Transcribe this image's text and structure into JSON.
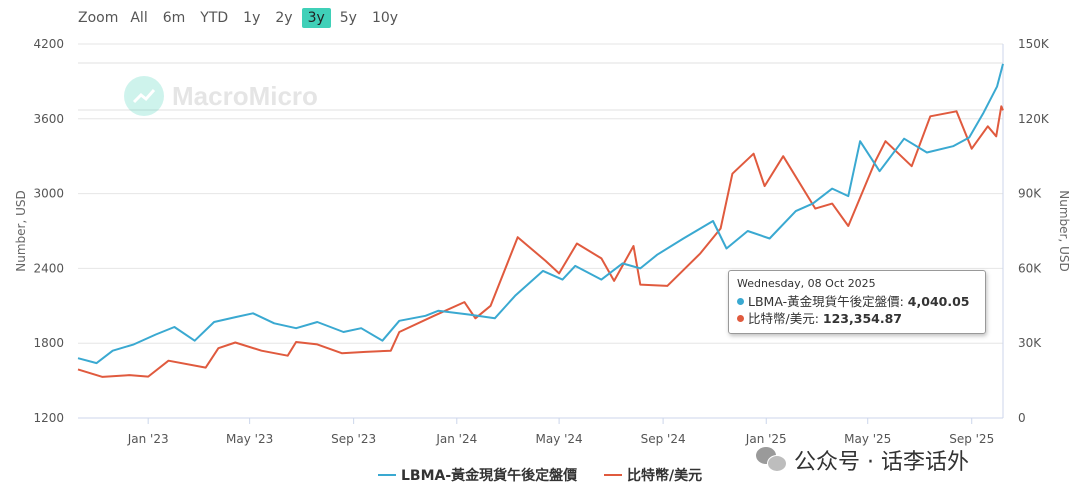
{
  "zoom": {
    "label": "Zoom",
    "buttons": [
      "All",
      "6m",
      "YTD",
      "1y",
      "2y",
      "3y",
      "5y",
      "10y"
    ],
    "active": "3y"
  },
  "watermark": "MacroMicro",
  "tooltip": {
    "date": "Wednesday, 08 Oct 2025",
    "series1_label": "LBMA-黃金現貨午後定盤價: ",
    "series1_value": "4,040.05",
    "series2_label": "比特幣/美元: ",
    "series2_value": "123,354.87"
  },
  "social": "公众号 · 话李话外",
  "chart_data": {
    "type": "line",
    "x_ticks": [
      "Jan '23",
      "May '23",
      "Sep '23",
      "Jan '24",
      "May '24",
      "Sep '24",
      "Jan '25",
      "May '25",
      "Sep '25"
    ],
    "x_range": [
      "2022-10-10",
      "2025-10-08"
    ],
    "y_left": {
      "title": "Number, USD",
      "ticks": [
        "1200",
        "1800",
        "2400",
        "3000",
        "3600",
        "4200"
      ],
      "min": 1200,
      "max": 4200
    },
    "y_right": {
      "title": "Number, USD",
      "ticks": [
        "0",
        "30K",
        "60K",
        "90K",
        "120K",
        "150K"
      ],
      "min": 0,
      "max": 150000
    },
    "legend_position": "bottom-center",
    "series": [
      {
        "name": "LBMA-黃金現貨午後定盤價",
        "axis": "left",
        "color": "#3aa9d1",
        "points": [
          [
            "2022-10-10",
            1680
          ],
          [
            "2022-11-01",
            1640
          ],
          [
            "2022-11-20",
            1740
          ],
          [
            "2022-12-15",
            1790
          ],
          [
            "2023-01-10",
            1870
          ],
          [
            "2023-02-01",
            1930
          ],
          [
            "2023-02-25",
            1820
          ],
          [
            "2023-03-20",
            1970
          ],
          [
            "2023-04-15",
            2010
          ],
          [
            "2023-05-05",
            2040
          ],
          [
            "2023-05-30",
            1960
          ],
          [
            "2023-06-25",
            1920
          ],
          [
            "2023-07-20",
            1970
          ],
          [
            "2023-08-20",
            1890
          ],
          [
            "2023-09-10",
            1920
          ],
          [
            "2023-10-05",
            1820
          ],
          [
            "2023-10-25",
            1980
          ],
          [
            "2023-11-25",
            2020
          ],
          [
            "2023-12-10",
            2060
          ],
          [
            "2024-01-15",
            2030
          ],
          [
            "2024-02-15",
            2000
          ],
          [
            "2024-03-10",
            2180
          ],
          [
            "2024-04-12",
            2380
          ],
          [
            "2024-05-05",
            2310
          ],
          [
            "2024-05-20",
            2420
          ],
          [
            "2024-06-20",
            2310
          ],
          [
            "2024-07-15",
            2440
          ],
          [
            "2024-08-05",
            2400
          ],
          [
            "2024-08-25",
            2510
          ],
          [
            "2024-09-25",
            2640
          ],
          [
            "2024-10-30",
            2780
          ],
          [
            "2024-11-15",
            2560
          ],
          [
            "2024-12-10",
            2700
          ],
          [
            "2025-01-05",
            2640
          ],
          [
            "2025-02-05",
            2860
          ],
          [
            "2025-02-25",
            2920
          ],
          [
            "2025-03-20",
            3040
          ],
          [
            "2025-04-08",
            2980
          ],
          [
            "2025-04-22",
            3420
          ],
          [
            "2025-05-15",
            3180
          ],
          [
            "2025-06-13",
            3440
          ],
          [
            "2025-07-10",
            3330
          ],
          [
            "2025-08-10",
            3380
          ],
          [
            "2025-08-29",
            3450
          ],
          [
            "2025-09-15",
            3650
          ],
          [
            "2025-10-01",
            3860
          ],
          [
            "2025-10-08",
            4040
          ]
        ]
      },
      {
        "name": "比特幣/美元",
        "axis": "right",
        "color": "#e05a3e",
        "points": [
          [
            "2022-10-10",
            19500
          ],
          [
            "2022-11-08",
            16500
          ],
          [
            "2022-12-10",
            17200
          ],
          [
            "2023-01-01",
            16600
          ],
          [
            "2023-01-25",
            23000
          ],
          [
            "2023-03-10",
            20200
          ],
          [
            "2023-03-25",
            28000
          ],
          [
            "2023-04-14",
            30300
          ],
          [
            "2023-05-15",
            27000
          ],
          [
            "2023-06-15",
            25000
          ],
          [
            "2023-06-25",
            30500
          ],
          [
            "2023-07-20",
            29500
          ],
          [
            "2023-08-18",
            26000
          ],
          [
            "2023-09-15",
            26500
          ],
          [
            "2023-10-15",
            27000
          ],
          [
            "2023-10-25",
            34500
          ],
          [
            "2023-12-05",
            41000
          ],
          [
            "2024-01-10",
            46500
          ],
          [
            "2024-01-23",
            40000
          ],
          [
            "2024-02-10",
            45000
          ],
          [
            "2024-03-13",
            72500
          ],
          [
            "2024-04-15",
            63000
          ],
          [
            "2024-05-01",
            58000
          ],
          [
            "2024-05-22",
            70000
          ],
          [
            "2024-06-20",
            64000
          ],
          [
            "2024-07-05",
            55000
          ],
          [
            "2024-07-28",
            69000
          ],
          [
            "2024-08-05",
            53500
          ],
          [
            "2024-09-06",
            53000
          ],
          [
            "2024-10-15",
            66000
          ],
          [
            "2024-11-08",
            76000
          ],
          [
            "2024-11-22",
            98000
          ],
          [
            "2024-12-17",
            106000
          ],
          [
            "2024-12-30",
            93000
          ],
          [
            "2025-01-21",
            105000
          ],
          [
            "2025-02-28",
            84000
          ],
          [
            "2025-03-20",
            86000
          ],
          [
            "2025-04-08",
            77000
          ],
          [
            "2025-05-10",
            103000
          ],
          [
            "2025-05-22",
            111000
          ],
          [
            "2025-06-22",
            101000
          ],
          [
            "2025-07-14",
            121000
          ],
          [
            "2025-08-14",
            123000
          ],
          [
            "2025-09-01",
            108000
          ],
          [
            "2025-09-20",
            117000
          ],
          [
            "2025-09-30",
            113000
          ],
          [
            "2025-10-06",
            125000
          ],
          [
            "2025-10-08",
            123354.87
          ]
        ]
      }
    ]
  }
}
